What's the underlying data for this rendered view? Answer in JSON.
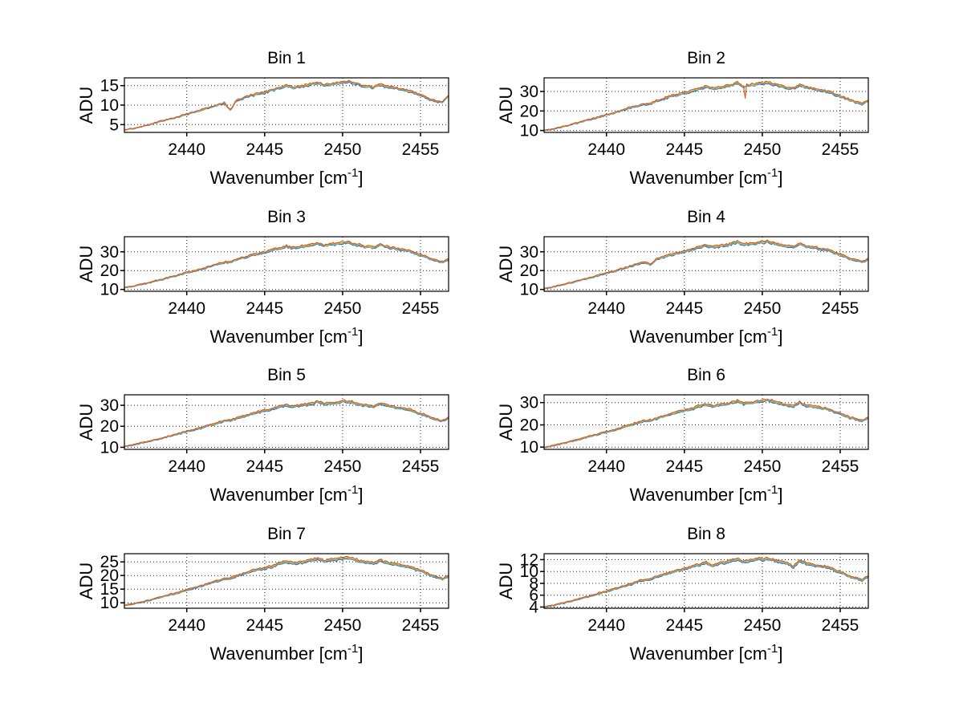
{
  "figure": {
    "background": "#ffffff",
    "ylabel": "ADU",
    "xlabel": {
      "prefix": "Wavenumber [cm",
      "sup": "-1",
      "suffix": "]"
    },
    "xlim": [
      2436,
      2456.8
    ],
    "xticks": [
      "2440",
      "2445",
      "2450",
      "2455"
    ],
    "xtick_values": [
      2440,
      2445,
      2450,
      2455
    ],
    "grid": "dotted",
    "axis_color": "#000000",
    "text_color": "#000000",
    "line_colors": [
      "#3A62B8",
      "#3FB8C8",
      "#D9B020",
      "#D9531E"
    ],
    "series_scales": [
      0.982,
      0.992,
      1.002,
      1.012
    ],
    "legend": "none"
  },
  "chart_data": [
    {
      "type": "line",
      "title": "Bin 1",
      "ylabel": "ADU",
      "xlabel": "Wavenumber [cm-1]",
      "x_start": 2436,
      "x_step": 0.4,
      "xlim": [
        2436,
        2456.8
      ],
      "ylim": [
        3,
        17
      ],
      "yticks": [
        5,
        10,
        15
      ],
      "noise": 0.25,
      "spike": null,
      "y": [
        3.6,
        3.9,
        4.2,
        4.6,
        5.0,
        5.5,
        5.9,
        6.3,
        6.7,
        7.2,
        7.7,
        8.1,
        8.6,
        9.1,
        9.6,
        10.1,
        10.6,
        8.7,
        11.3,
        11.8,
        12.3,
        12.8,
        13.1,
        13.5,
        14.0,
        14.5,
        15.0,
        14.5,
        14.8,
        15.0,
        15.4,
        15.9,
        15.1,
        15.4,
        15.6,
        15.9,
        16.0,
        15.5,
        15.1,
        14.8,
        14.5,
        15.4,
        14.8,
        14.5,
        14.1,
        13.9,
        13.5,
        12.8,
        12.3,
        11.5,
        11.0,
        10.8,
        12.6
      ]
    },
    {
      "type": "line",
      "title": "Bin 2",
      "ylabel": "ADU",
      "xlabel": "Wavenumber [cm-1]",
      "x_start": 2436,
      "x_step": 0.4,
      "xlim": [
        2436,
        2456.8
      ],
      "ylim": [
        9,
        37
      ],
      "yticks": [
        10,
        20,
        30
      ],
      "noise": 0.5,
      "spike": {
        "x": 2448.9,
        "y": 26.5,
        "series": 3
      },
      "y": [
        10.0,
        10.5,
        11.2,
        12.0,
        12.7,
        13.7,
        14.4,
        15.4,
        16.1,
        17.1,
        18.1,
        18.8,
        19.8,
        20.8,
        21.8,
        22.7,
        23.7,
        23.5,
        25.2,
        26.2,
        27.2,
        28.1,
        28.9,
        29.6,
        30.6,
        31.6,
        32.5,
        31.6,
        32.1,
        32.5,
        33.3,
        34.3,
        32.6,
        33.3,
        33.8,
        34.3,
        34.5,
        33.5,
        32.8,
        32.1,
        31.6,
        33.3,
        32.1,
        31.6,
        30.8,
        30.3,
        29.6,
        28.1,
        27.2,
        25.7,
        24.7,
        23.7,
        25.4
      ]
    },
    {
      "type": "line",
      "title": "Bin 3",
      "ylabel": "ADU",
      "xlabel": "Wavenumber [cm-1]",
      "x_start": 2436,
      "x_step": 0.4,
      "xlim": [
        2436,
        2456.8
      ],
      "ylim": [
        9,
        38
      ],
      "yticks": [
        10,
        20,
        30
      ],
      "noise": 0.5,
      "spike": null,
      "y": [
        11.0,
        11.5,
        12.2,
        12.9,
        13.6,
        14.6,
        15.3,
        16.3,
        17.0,
        18.0,
        18.9,
        19.6,
        20.6,
        21.6,
        22.5,
        23.5,
        24.4,
        24.7,
        25.9,
        26.8,
        27.8,
        28.8,
        29.5,
        30.2,
        31.2,
        32.1,
        33.1,
        32.1,
        32.6,
        33.1,
        33.8,
        34.8,
        33.3,
        33.8,
        34.3,
        34.8,
        35.0,
        34.0,
        33.3,
        32.6,
        32.1,
        33.8,
        32.6,
        32.1,
        31.4,
        30.9,
        30.2,
        28.8,
        27.8,
        26.4,
        25.4,
        24.4,
        26.1
      ]
    },
    {
      "type": "line",
      "title": "Bin 4",
      "ylabel": "ADU",
      "xlabel": "Wavenumber [cm-1]",
      "x_start": 2436,
      "x_step": 0.4,
      "xlim": [
        2436,
        2456.8
      ],
      "ylim": [
        9,
        38
      ],
      "yticks": [
        10,
        20,
        30
      ],
      "noise": 0.5,
      "spike": null,
      "y": [
        10.5,
        11.0,
        11.8,
        12.5,
        13.3,
        14.3,
        15.0,
        16.0,
        16.8,
        17.8,
        18.8,
        19.5,
        20.5,
        21.5,
        22.5,
        23.5,
        24.5,
        23.2,
        26.0,
        27.0,
        28.0,
        29.0,
        29.8,
        30.5,
        31.5,
        32.5,
        33.5,
        32.5,
        33.0,
        33.5,
        34.3,
        35.3,
        33.8,
        34.3,
        34.8,
        35.3,
        35.5,
        34.5,
        33.8,
        33.0,
        32.5,
        34.3,
        33.0,
        32.5,
        31.8,
        31.3,
        30.5,
        29.0,
        28.0,
        26.5,
        25.5,
        24.5,
        26.3
      ]
    },
    {
      "type": "line",
      "title": "Bin 5",
      "ylabel": "ADU",
      "xlabel": "Wavenumber [cm-1]",
      "x_start": 2436,
      "x_step": 0.4,
      "xlim": [
        2436,
        2456.8
      ],
      "ylim": [
        9,
        35
      ],
      "yticks": [
        10,
        20,
        30
      ],
      "noise": 0.45,
      "spike": null,
      "y": [
        10.5,
        10.9,
        11.6,
        12.2,
        12.9,
        13.7,
        14.4,
        15.2,
        15.9,
        16.7,
        17.6,
        18.2,
        19.1,
        20.0,
        20.8,
        21.7,
        22.5,
        22.8,
        23.8,
        24.7,
        25.6,
        26.4,
        27.1,
        27.7,
        28.6,
        29.4,
        30.3,
        29.4,
        29.9,
        30.3,
        30.9,
        31.8,
        30.5,
        30.9,
        31.4,
        31.8,
        32.0,
        31.1,
        30.5,
        29.9,
        29.4,
        30.9,
        29.9,
        29.4,
        28.8,
        28.3,
        27.7,
        26.4,
        25.6,
        24.3,
        23.4,
        22.5,
        24.0
      ]
    },
    {
      "type": "line",
      "title": "Bin 6",
      "ylabel": "ADU",
      "xlabel": "Wavenumber [cm-1]",
      "x_start": 2436,
      "x_step": 0.4,
      "xlim": [
        2436,
        2456.8
      ],
      "ylim": [
        9,
        33.5
      ],
      "yticks": [
        10,
        20,
        30
      ],
      "noise": 0.45,
      "spike": null,
      "y": [
        10.0,
        10.4,
        11.1,
        11.7,
        12.3,
        13.2,
        13.8,
        14.6,
        15.3,
        16.1,
        16.9,
        17.6,
        18.4,
        19.2,
        20.1,
        20.9,
        21.8,
        22.0,
        23.0,
        23.9,
        24.7,
        25.5,
        26.2,
        26.8,
        27.6,
        28.5,
        29.3,
        28.5,
        28.9,
        29.3,
        30.0,
        30.8,
        29.5,
        30.0,
        30.4,
        30.8,
        31.0,
        30.2,
        29.5,
        28.9,
        28.5,
        30.0,
        28.9,
        28.5,
        27.9,
        27.4,
        26.8,
        25.5,
        24.7,
        23.4,
        22.6,
        21.8,
        23.2
      ]
    },
    {
      "type": "line",
      "title": "Bin 7",
      "ylabel": "ADU",
      "xlabel": "Wavenumber [cm-1]",
      "x_start": 2436,
      "x_step": 0.4,
      "xlim": [
        2436,
        2456.8
      ],
      "ylim": [
        8,
        28
      ],
      "yticks": [
        10,
        15,
        20,
        25
      ],
      "noise": 0.35,
      "spike": null,
      "y": [
        9.0,
        9.4,
        9.9,
        10.4,
        10.9,
        11.6,
        12.2,
        12.9,
        13.4,
        14.1,
        14.8,
        15.3,
        16.0,
        16.7,
        17.4,
        18.1,
        18.8,
        19.0,
        19.9,
        20.6,
        21.3,
        22.0,
        22.5,
        23.0,
        23.7,
        24.4,
        25.1,
        24.4,
        24.8,
        25.1,
        25.6,
        26.3,
        25.3,
        25.6,
        26.0,
        26.3,
        26.5,
        25.8,
        25.3,
        24.8,
        24.4,
        25.6,
        24.8,
        24.4,
        23.9,
        23.5,
        23.0,
        22.0,
        21.3,
        20.2,
        19.5,
        18.8,
        20.0
      ]
    },
    {
      "type": "line",
      "title": "Bin 8",
      "ylabel": "ADU",
      "xlabel": "Wavenumber [cm-1]",
      "x_start": 2436,
      "x_step": 0.4,
      "xlim": [
        2436,
        2456.8
      ],
      "ylim": [
        3.8,
        13
      ],
      "yticks": [
        4,
        6,
        8,
        10,
        12
      ],
      "noise": 0.16,
      "spike": null,
      "y": [
        4.0,
        4.2,
        4.4,
        4.7,
        4.9,
        5.2,
        5.5,
        5.8,
        6.1,
        6.4,
        6.7,
        7.0,
        7.3,
        7.6,
        7.9,
        8.3,
        8.6,
        8.7,
        9.1,
        9.4,
        9.7,
        10.1,
        10.3,
        10.6,
        10.9,
        11.2,
        11.5,
        10.9,
        11.4,
        11.5,
        11.8,
        12.1,
        11.6,
        11.8,
        12.0,
        12.1,
        12.2,
        11.9,
        11.6,
        11.4,
        10.8,
        11.8,
        11.4,
        11.2,
        11.0,
        10.8,
        10.6,
        10.1,
        9.7,
        9.2,
        8.9,
        8.6,
        9.2
      ]
    }
  ]
}
